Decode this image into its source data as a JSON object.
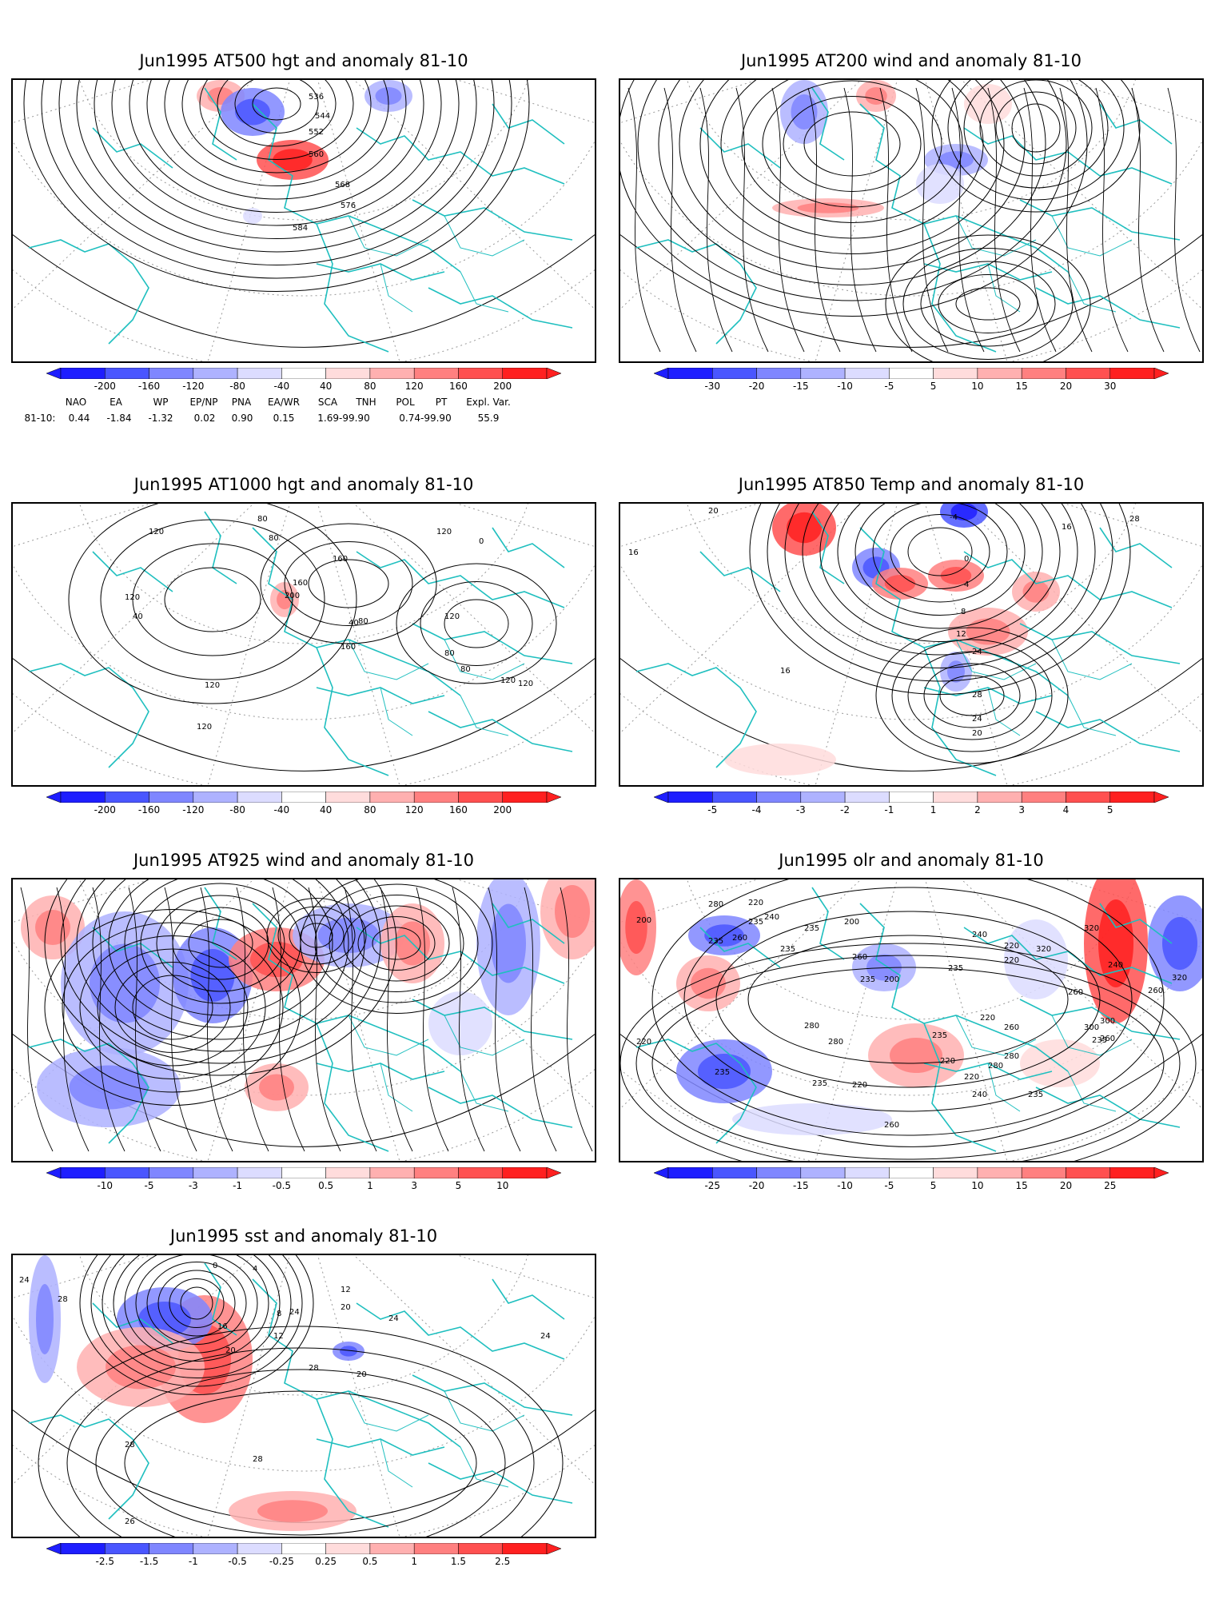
{
  "panels": [
    {
      "id": "p1",
      "title": "Jun1995 AT500 hgt and anomaly 81-10",
      "contour_labels": [
        "536",
        "544",
        "552",
        "560",
        "568",
        "576",
        "584"
      ],
      "colorbar": [
        "-200",
        "-160",
        "-120",
        "-80",
        "-40",
        "40",
        "80",
        "120",
        "160",
        "200"
      ]
    },
    {
      "id": "p2",
      "title": "Jun1995 AT200 wind and anomaly 81-10",
      "contour_labels": [],
      "colorbar": [
        "-30",
        "-20",
        "-15",
        "-10",
        "-5",
        "5",
        "10",
        "15",
        "20",
        "30"
      ]
    },
    {
      "id": "p3",
      "title": "Jun1995 AT1000 hgt and anomaly 81-10",
      "contour_labels": [
        "120",
        "80",
        "80",
        "120",
        "0",
        "160",
        "160",
        "120",
        "200",
        "40",
        "120",
        "80",
        "40",
        "80",
        "160",
        "120",
        "80",
        "120",
        "120",
        "120"
      ],
      "colorbar": [
        "-200",
        "-160",
        "-120",
        "-80",
        "-40",
        "40",
        "80",
        "120",
        "160",
        "200"
      ]
    },
    {
      "id": "p4",
      "title": "Jun1995 AT850 Temp and anomaly 81-10",
      "contour_labels": [
        "20",
        "-4",
        "16",
        "28",
        "16",
        "0",
        "4",
        "8",
        "12",
        "24",
        "16",
        "28",
        "24",
        "20"
      ],
      "colorbar": [
        "-5",
        "-4",
        "-3",
        "-2",
        "-1",
        "1",
        "2",
        "3",
        "4",
        "5"
      ]
    },
    {
      "id": "p5",
      "title": "Jun1995 AT925 wind and anomaly 81-10",
      "contour_labels": [],
      "colorbar": [
        "-10",
        "-5",
        "-3",
        "-1",
        "-0.5",
        "0.5",
        "1",
        "3",
        "5",
        "10"
      ]
    },
    {
      "id": "p6",
      "title": "Jun1995 olr and anomaly 81-10",
      "contour_labels": [
        "280",
        "220",
        "200",
        "240",
        "235",
        "260",
        "235",
        "200",
        "235",
        "260",
        "220",
        "235",
        "240",
        "220",
        "320",
        "320",
        "235",
        "240",
        "260",
        "260",
        "235",
        "200",
        "320",
        "280",
        "300",
        "260",
        "220",
        "280",
        "220",
        "235",
        "260",
        "235",
        "300",
        "280",
        "220",
        "235",
        "280",
        "220",
        "235",
        "220",
        "240",
        "235",
        "260"
      ],
      "colorbar": [
        "-25",
        "-20",
        "-15",
        "-10",
        "-5",
        "5",
        "10",
        "15",
        "20",
        "25"
      ]
    },
    {
      "id": "p7",
      "title": "Jun1995 sst and anomaly 81-10",
      "contour_labels": [
        "24",
        "28",
        "0",
        "4",
        "12",
        "24",
        "8",
        "12",
        "16",
        "20",
        "20",
        "24",
        "20",
        "28",
        "24",
        "28",
        "28",
        "26"
      ],
      "colorbar": [
        "-2.5",
        "-1.5",
        "-1",
        "-0.5",
        "-0.25",
        "0.25",
        "0.5",
        "1",
        "1.5",
        "2.5"
      ]
    }
  ],
  "teleconnection": {
    "headers": [
      "NAO",
      "EA",
      "WP",
      "EP/NP",
      "PNA",
      "EA/WR",
      "SCA",
      "TNH",
      "POL",
      "PT",
      "Expl. Var."
    ],
    "row_label": "81-10:",
    "values": [
      "0.44",
      "-1.84",
      "-1.32",
      "0.02",
      "0.90",
      "0.15",
      "1.69-99.90",
      "",
      "0.74-99.90",
      "",
      "55.9"
    ]
  },
  "colors": {
    "coast": "#1fbfbf",
    "contour": "#000000",
    "neg": [
      "#1e1eff",
      "#4a56ff",
      "#7f86ff",
      "#aeb2ff",
      "#dcdcff"
    ],
    "pos": [
      "#ffdcdc",
      "#ffb0b0",
      "#ff8080",
      "#ff5050",
      "#ff2020"
    ]
  }
}
